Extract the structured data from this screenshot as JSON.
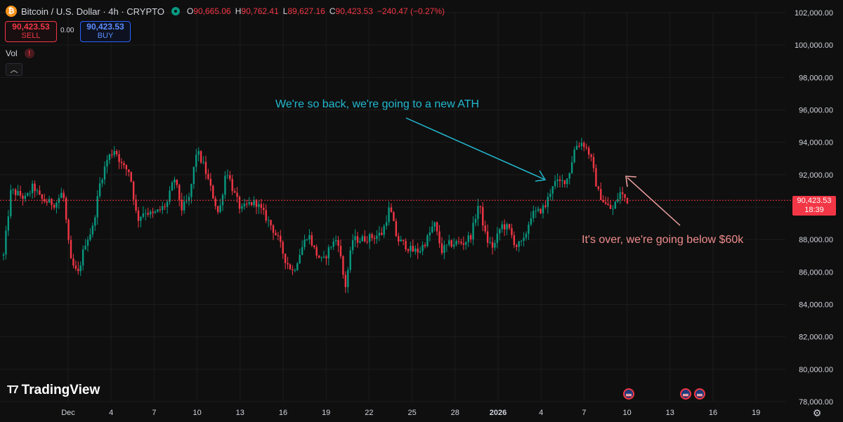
{
  "header": {
    "title": "Bitcoin / U.S. Dollar · 4h · CRYPTO",
    "ohlc": [
      {
        "k": "O",
        "v": "90,665.06"
      },
      {
        "k": "H",
        "v": "90,762.41"
      },
      {
        "k": "L",
        "v": "89,627.16"
      },
      {
        "k": "C",
        "v": "90,423.53"
      }
    ],
    "change": "−240.47 (−0.27%)"
  },
  "trade": {
    "sell_price": "90,423.53",
    "sell_label": "SELL",
    "spread": "0.00",
    "buy_price": "90,423.53",
    "buy_label": "BUY"
  },
  "volume": {
    "label": "Vol"
  },
  "annotations": {
    "up": "We're so back, we're going to a new ATH",
    "down": "It's over, we're going below $60k"
  },
  "current_price": {
    "price": "90,423.53",
    "countdown": "18:39"
  },
  "brand": {
    "name": "TradingView"
  },
  "colors": {
    "up": "#089981",
    "down": "#f23645",
    "background": "#0f0f0f",
    "up_annotation": "#22b8cf",
    "down_annotation": "#f08c8c"
  },
  "chart_data": {
    "type": "candlestick",
    "ylim": [
      78000,
      102000
    ],
    "yticks": [
      102000,
      100000,
      98000,
      96000,
      94000,
      92000,
      90000,
      88000,
      86000,
      84000,
      82000,
      80000,
      78000
    ],
    "ytick_labels": [
      "102,000.00",
      "100,000.00",
      "98,000.00",
      "96,000.00",
      "94,000.00",
      "92,000.00",
      "90,000.00",
      "88,000.00",
      "86,000.00",
      "84,000.00",
      "82,000.00",
      "80,000.00",
      "78,000.00"
    ],
    "xticks": [
      "Dec",
      "4",
      "7",
      "10",
      "13",
      "16",
      "19",
      "22",
      "25",
      "28",
      "2026",
      "4",
      "7",
      "10",
      "13",
      "16",
      "19"
    ],
    "anchor_closes": [
      87000,
      91000,
      90800,
      90500,
      91300,
      90500,
      90300,
      90200,
      91000,
      86700,
      85800,
      87800,
      88700,
      91500,
      93000,
      93600,
      92500,
      92200,
      89200,
      89800,
      89500,
      89800,
      90200,
      91800,
      89900,
      90500,
      93500,
      92500,
      91000,
      89500,
      92400,
      90900,
      89800,
      90200,
      90300,
      89600,
      88900,
      88000,
      86700,
      86000,
      87300,
      88400,
      87200,
      86600,
      87600,
      88100,
      85000,
      88000,
      88000,
      88100,
      88200,
      88400,
      90000,
      88000,
      87700,
      87300,
      87300,
      88000,
      89000,
      87300,
      87700,
      87800,
      87800,
      88300,
      90300,
      88000,
      87500,
      88900,
      88700,
      87600,
      87800,
      89500,
      89700,
      90100,
      91500,
      91500,
      91800,
      93800,
      94000,
      93200,
      91000,
      90200,
      89800,
      90900,
      90400
    ],
    "current_price": 90423.53
  }
}
